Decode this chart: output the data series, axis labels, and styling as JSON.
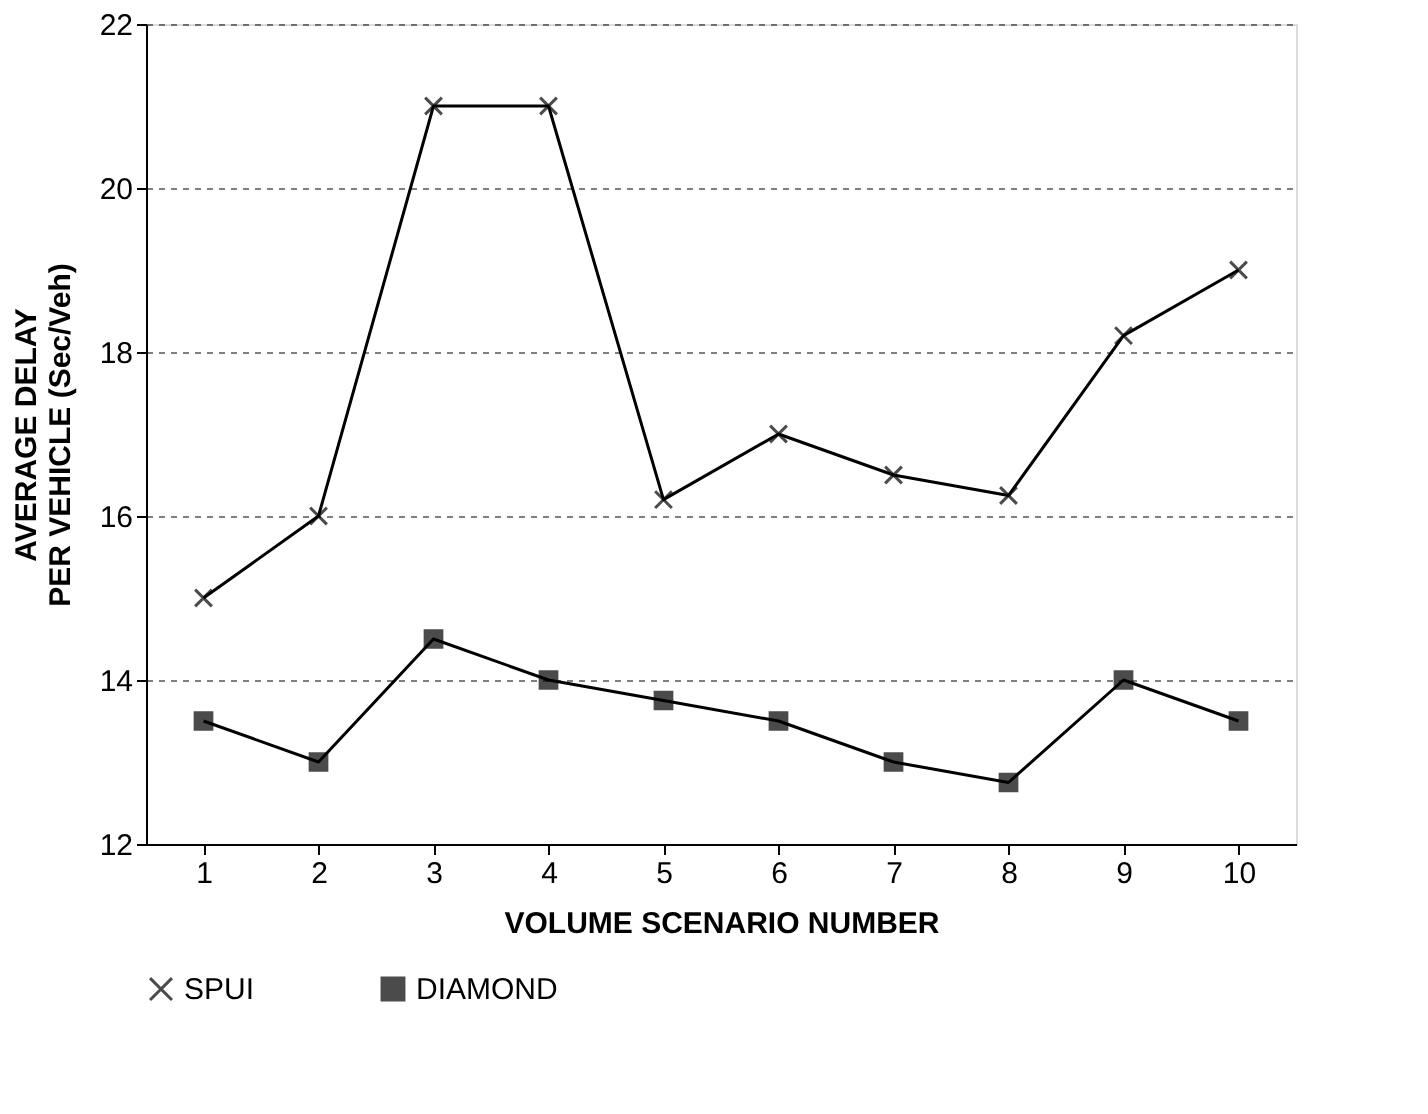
{
  "chart_data": {
    "type": "line",
    "xlabel": "VOLUME SCENARIO NUMBER",
    "ylabel": "AVERAGE DELAY\nPER VEHICLE (Sec/Veh)",
    "x": [
      1,
      2,
      3,
      4,
      5,
      6,
      7,
      8,
      9,
      10
    ],
    "series": [
      {
        "name": "SPUI",
        "color": "#000000",
        "marker": "cross",
        "values": [
          15,
          16,
          21,
          21,
          16.2,
          17,
          16.5,
          16.25,
          18.2,
          19
        ]
      },
      {
        "name": "DIAMOND",
        "color": "#000000",
        "marker": "square",
        "values": [
          13.5,
          13,
          14.5,
          14,
          13.75,
          13.5,
          13,
          12.75,
          14,
          13.5
        ]
      }
    ],
    "xlim": [
      0.5,
      10.5
    ],
    "xticks": [
      1,
      2,
      3,
      4,
      5,
      6,
      7,
      8,
      9,
      10
    ],
    "ylim": [
      12,
      22
    ],
    "yticks": [
      12,
      14,
      16,
      18,
      20,
      22
    ],
    "grid": "y",
    "legend": "bottom",
    "line_style": "solid"
  }
}
